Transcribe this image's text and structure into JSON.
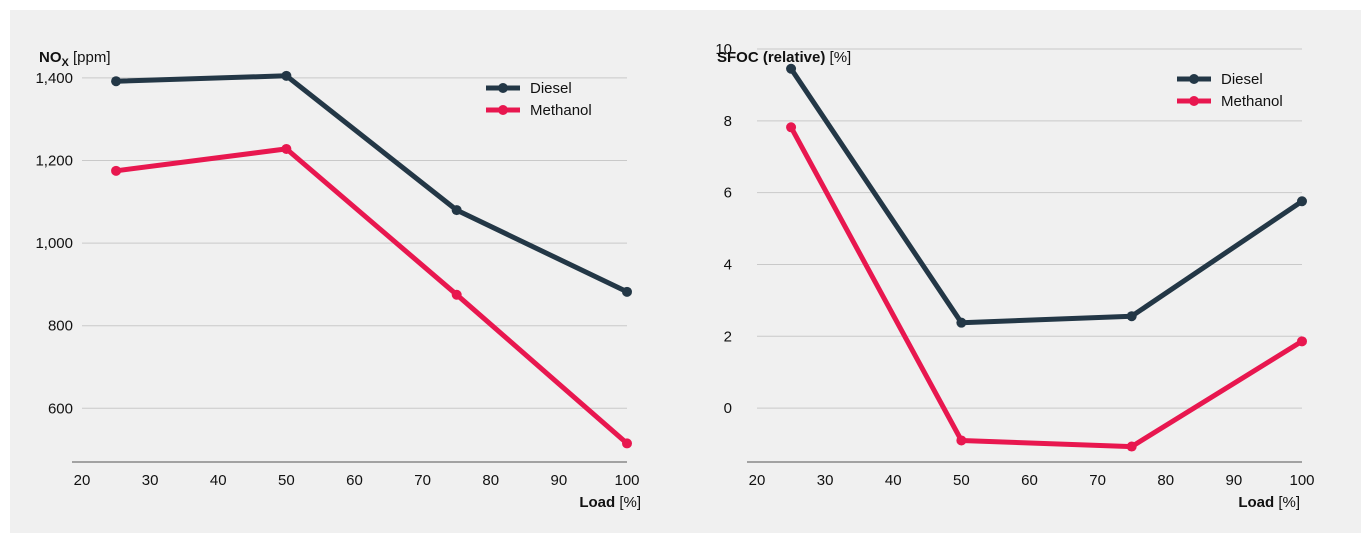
{
  "chart_data": [
    {
      "type": "line",
      "ylabel_main": "NO",
      "ylabel_sub": "X",
      "ylabel_unit": "[ppm]",
      "xlabel_bold": "Load",
      "xlabel_unit": "[%]",
      "xlim": [
        20,
        100
      ],
      "ylim": [
        470,
        1470
      ],
      "xticks": [
        20,
        30,
        40,
        50,
        60,
        70,
        80,
        90,
        100
      ],
      "yticks": [
        600,
        800,
        1000,
        1200,
        1400
      ],
      "ytick_labels": [
        "600",
        "800",
        "1,000",
        "1,200",
        "1,400"
      ],
      "legend": "top-right",
      "x": [
        25,
        50,
        75,
        100
      ],
      "series": [
        {
          "name": "Diesel",
          "color": "#233746",
          "values": [
            1392,
            1405,
            1080,
            882
          ]
        },
        {
          "name": "Methanol",
          "color": "#e8174f",
          "values": [
            1175,
            1228,
            875,
            515
          ]
        }
      ]
    },
    {
      "type": "line",
      "ylabel_main": "SFOC (relative)",
      "ylabel_sub": "",
      "ylabel_unit": "[%]",
      "xlabel_bold": "Load",
      "xlabel_unit": "[%]",
      "xlim": [
        20,
        100
      ],
      "ylim": [
        -1.5,
        10
      ],
      "xticks": [
        20,
        30,
        40,
        50,
        60,
        70,
        80,
        90,
        100
      ],
      "yticks": [
        0,
        2,
        4,
        6,
        8,
        10
      ],
      "ytick_labels": [
        "0",
        "2",
        "4",
        "6",
        "8",
        "10"
      ],
      "legend": "top-right",
      "x": [
        25,
        50,
        75,
        100
      ],
      "series": [
        {
          "name": "Diesel",
          "color": "#233746",
          "values": [
            9.45,
            2.38,
            2.56,
            5.76
          ]
        },
        {
          "name": "Methanol",
          "color": "#e8174f",
          "values": [
            7.82,
            -0.9,
            -1.07,
            1.86
          ]
        }
      ]
    }
  ]
}
